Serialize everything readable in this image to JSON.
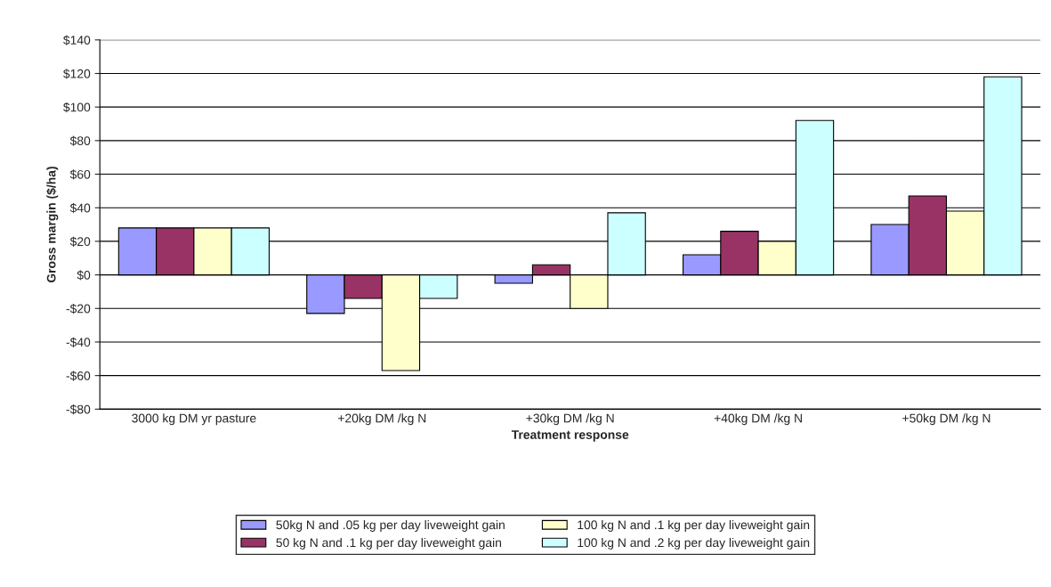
{
  "chart_data": {
    "type": "bar",
    "xlabel": "Treatment response",
    "ylabel": "Gross margin ($/ha)",
    "categories": [
      "3000 kg DM yr pasture",
      "+20kg DM /kg N",
      "+30kg DM /kg N",
      "+40kg DM /kg N",
      "+50kg DM /kg N"
    ],
    "series": [
      {
        "name": "50kg N and .05 kg per day liveweight gain",
        "color": "#9999ff",
        "values": [
          28,
          -23,
          -5,
          12,
          30
        ]
      },
      {
        "name": "50 kg N and .1 kg per day liveweight gain",
        "color": "#993366",
        "values": [
          28,
          -14,
          6,
          26,
          47
        ]
      },
      {
        "name": "100 kg N and .1 kg per day liveweight gain",
        "color": "#ffffcc",
        "values": [
          28,
          -57,
          -20,
          20,
          38
        ]
      },
      {
        "name": "100 kg N and .2 kg per day liveweight gain",
        "color": "#ccffff",
        "values": [
          28,
          -14,
          37,
          92,
          118
        ]
      }
    ],
    "ylim": [
      -80,
      140
    ],
    "yticks": [
      {
        "value": -80,
        "label": "-$80"
      },
      {
        "value": -60,
        "label": "-$60"
      },
      {
        "value": -40,
        "label": "-$40"
      },
      {
        "value": -20,
        "label": "-$20"
      },
      {
        "value": 0,
        "label": "$0"
      },
      {
        "value": 20,
        "label": "$20"
      },
      {
        "value": 40,
        "label": "$40"
      },
      {
        "value": 60,
        "label": "$60"
      },
      {
        "value": 80,
        "label": "$80"
      },
      {
        "value": 100,
        "label": "$100"
      },
      {
        "value": 120,
        "label": "$120"
      },
      {
        "value": 140,
        "label": "$140"
      }
    ],
    "grid": "y",
    "legend": "bottom"
  }
}
